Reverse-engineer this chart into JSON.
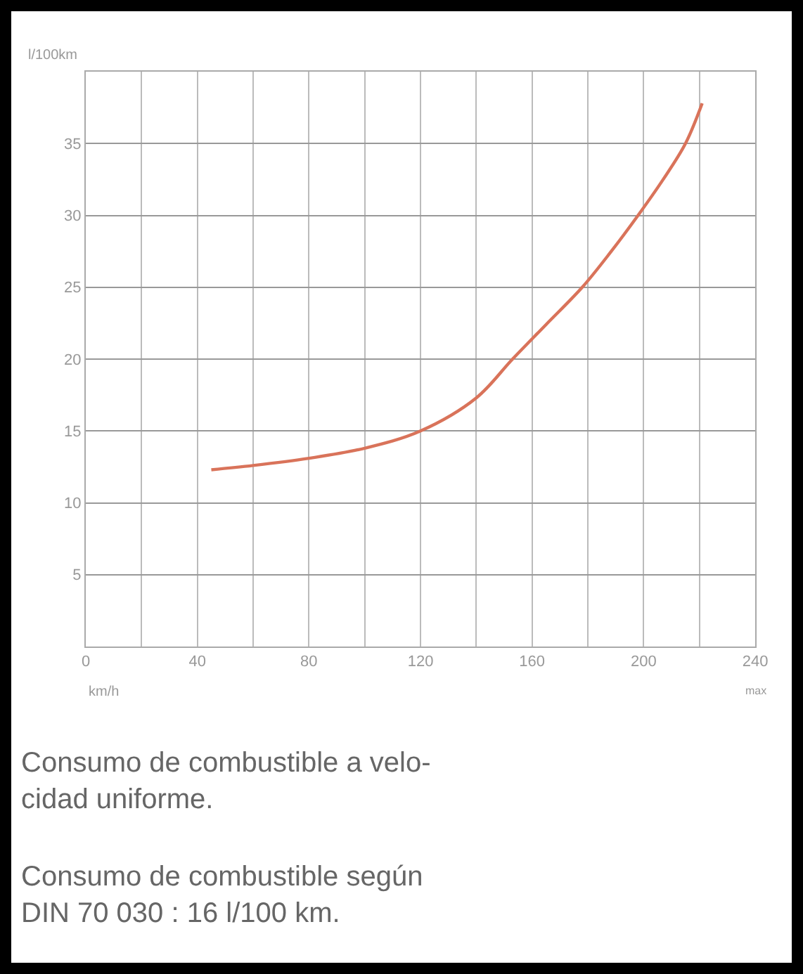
{
  "chart_data": {
    "type": "line",
    "ylabel": "l/100km",
    "xlabel": "km/h",
    "x": [
      45,
      60,
      80,
      100,
      120,
      140,
      153,
      165,
      178,
      188,
      198,
      207,
      215,
      221
    ],
    "series": [
      {
        "color": "#d9735a",
        "values": [
          12.3,
          12.6,
          13.1,
          13.8,
          15.0,
          17.3,
          20,
          22.4,
          25,
          27.4,
          30,
          32.5,
          35,
          37.8
        ]
      }
    ],
    "xlim": [
      0,
      240
    ],
    "ylim": [
      0,
      40
    ],
    "xticks": [
      0,
      {
        "value": 20,
        "label": null
      },
      40,
      {
        "value": 60,
        "label": null
      },
      80,
      {
        "value": 100,
        "label": null
      },
      120,
      {
        "value": 140,
        "label": null
      },
      160,
      {
        "value": 180,
        "label": null
      },
      200,
      {
        "value": 220,
        "label": null
      },
      240
    ],
    "yticks": [
      5,
      10,
      15,
      20,
      25,
      30,
      35
    ],
    "grid": true,
    "marker": "none",
    "line_style": "solid",
    "annotations": [
      "max",
      "Consumo de combustible a velo-\ncidad uniforme.",
      "Consumo de combustible según\nDIN 70 030 : 16 l/100 km."
    ]
  }
}
